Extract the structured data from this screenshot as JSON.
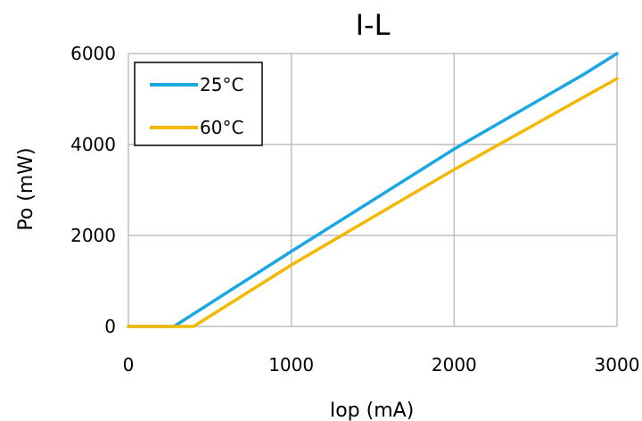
{
  "chart_data": {
    "type": "line",
    "title": "I-L",
    "xlabel": "Iop (mA)",
    "ylabel": "Po (mW)",
    "xlim": [
      0,
      3000
    ],
    "ylim": [
      0,
      6000
    ],
    "xticks": [
      "0",
      "1000",
      "2000",
      "3000"
    ],
    "yticks": [
      "0",
      "2000",
      "4000",
      "6000"
    ],
    "grid": true,
    "legend_position": "top-left",
    "series": [
      {
        "name": "25°C",
        "color": "#1aa7e2",
        "x": [
          0,
          280,
          1000,
          2000,
          2800,
          3000
        ],
        "y": [
          0,
          0,
          1650,
          3900,
          5550,
          6000
        ]
      },
      {
        "name": "60°C",
        "color": "#f5b800",
        "x": [
          0,
          400,
          1000,
          2000,
          3000
        ],
        "y": [
          0,
          0,
          1350,
          3450,
          5450
        ]
      }
    ]
  }
}
